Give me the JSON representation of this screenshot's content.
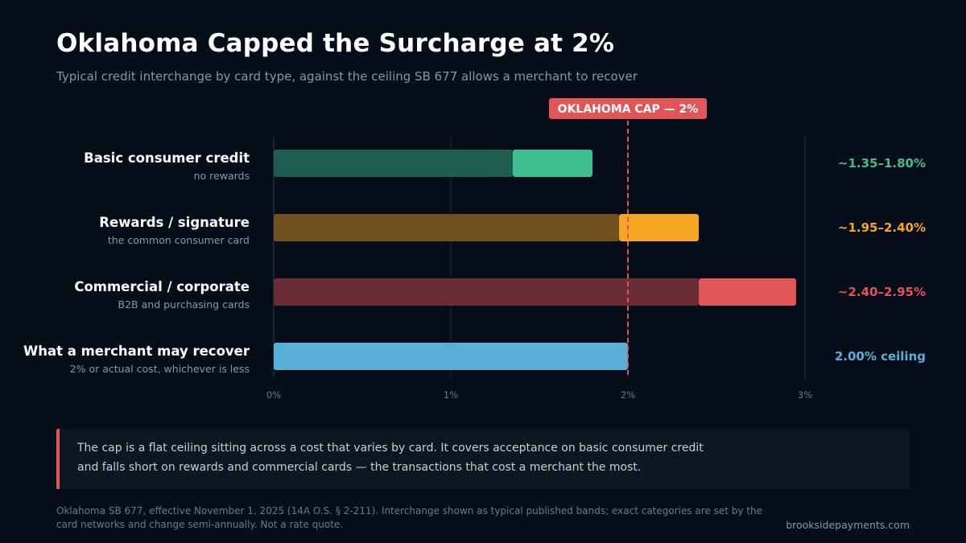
{
  "header": {
    "title": "Oklahoma Capped the Surcharge at 2%",
    "subtitle": "Typical credit interchange by card type, against the ceiling SB 677 allows a merchant to recover"
  },
  "chart_data": {
    "type": "bar",
    "orientation": "horizontal",
    "xlim": [
      0,
      3
    ],
    "xticks": [
      "0%",
      "1%",
      "2%",
      "3%"
    ],
    "grid": true,
    "cap": {
      "value": 2.0,
      "label": "OKLAHOMA CAP — 2%",
      "color": "#e05556"
    },
    "categories": [
      {
        "label": "Basic consumer credit",
        "sublabel": "no rewards",
        "low": 1.35,
        "high": 1.8,
        "value_label": "~1.35–1.80%",
        "color": "#3fbf8f",
        "dim_color": "#1f5e4e"
      },
      {
        "label": "Rewards / signature",
        "sublabel": "the common consumer card",
        "low": 1.95,
        "high": 2.4,
        "value_label": "~1.95–2.40%",
        "color": "#f5a623",
        "dim_color": "#6f5220"
      },
      {
        "label": "Commercial / corporate",
        "sublabel": "B2B and purchasing cards",
        "low": 2.4,
        "high": 2.95,
        "value_label": "~2.40–2.95%",
        "color": "#e05556",
        "dim_color": "#6b2d35"
      },
      {
        "label": "What a merchant may recover",
        "sublabel": "2% or actual cost, whichever is less",
        "low": 2.0,
        "high": 2.0,
        "value_label": "2.00% ceiling",
        "color": "#5aafd9",
        "dim_color": "#5aafd9"
      }
    ]
  },
  "callout": {
    "text_line1": "The cap is a flat ceiling sitting across a cost that varies by card. It covers acceptance on basic consumer credit",
    "text_line2": "and falls short on rewards and commercial cards — the transactions that cost a merchant the most."
  },
  "footer": {
    "note_line1": "Oklahoma SB 677, effective November 1, 2025 (14A O.S. § 2-211). Interchange shown as typical published bands; exact categories are set by the",
    "note_line2": "card networks and change semi-annually. Not a rate quote.",
    "brand": "brooksidepayments.com"
  }
}
